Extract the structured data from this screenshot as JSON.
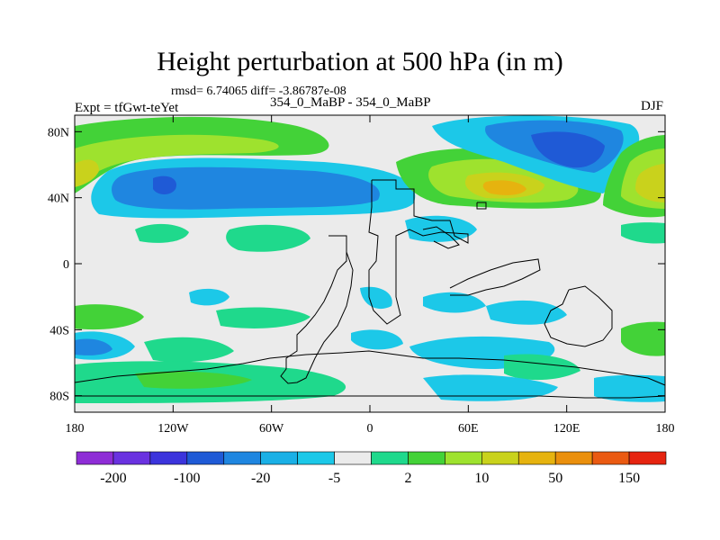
{
  "chart_data": {
    "type": "contour-map",
    "title": "Height perturbation at 500 hPa (in m)",
    "subtitle": "rmsd= 6.74065 diff= -3.86787e-08",
    "left_label": "Expt = tfGwt-teYet",
    "center_label": "354_0_MaBP - 354_0_MaBP",
    "right_label": "DJF",
    "x_ticks": [
      "180",
      "120W",
      "60W",
      "0",
      "60E",
      "120E",
      "180"
    ],
    "y_ticks": [
      "80N",
      "40N",
      "0",
      "40S",
      "80S"
    ],
    "xlim": [
      -180,
      180
    ],
    "ylim": [
      -90,
      90
    ],
    "colorbar": {
      "colors": [
        "#8e2dd6",
        "#6a32e0",
        "#3c34dc",
        "#1f5ad6",
        "#1f86e0",
        "#1ab0e6",
        "#1cc8e8",
        "#ebebeb",
        "#1fd98c",
        "#43d238",
        "#9ee22e",
        "#c9d21c",
        "#e6b30f",
        "#ea8f0c",
        "#ea5a12",
        "#e62410"
      ],
      "labels": [
        "-200",
        "-100",
        "-20",
        "-5",
        "2",
        "10",
        "50",
        "150"
      ]
    },
    "features": [
      {
        "name": "nh-pacific-low",
        "lon": -145,
        "lat": 48,
        "level": -100
      },
      {
        "name": "arctic-low",
        "lon": 100,
        "lat": 68,
        "level": -100
      },
      {
        "name": "north-atlantic-high",
        "lon": -170,
        "lat": 60,
        "level": 50
      },
      {
        "name": "eurasia-high",
        "lon": 90,
        "lat": 42,
        "level": 50
      },
      {
        "name": "north-pacific-east-high",
        "lon": 170,
        "lat": 45,
        "level": 50
      }
    ]
  }
}
